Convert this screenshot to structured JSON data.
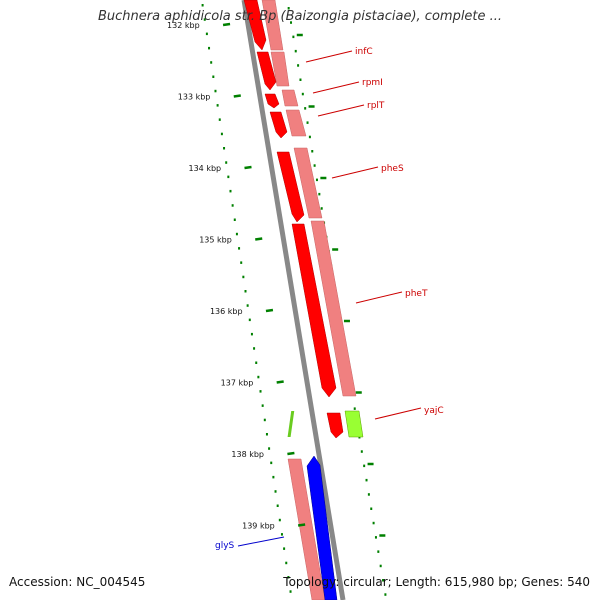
{
  "title": "Buchnera aphidicola str. Bp (Baizongia pistaciae), complete ...",
  "footer": {
    "accession": "Accession: NC_004545",
    "summary": "Topology: circular; Length: 615,980 bp; Genes: 540"
  },
  "colors": {
    "backbone": "#888888",
    "gene_forward": "#ff0000",
    "gene_reverse": "#0000ff",
    "gene_misc": "#99ff33",
    "cds_band": "#f08080",
    "cds_band_blue": "#f08080",
    "tick_dots": "#008000",
    "label_red": "#cc0000",
    "label_blue": "#0000cc"
  },
  "scale": {
    "unit": "kbp",
    "ticks": [
      {
        "kbp": 132,
        "label": "132 kbp"
      },
      {
        "kbp": 133,
        "label": "133 kbp"
      },
      {
        "kbp": 134,
        "label": "134 kbp"
      },
      {
        "kbp": 135,
        "label": "135 kbp"
      },
      {
        "kbp": 136,
        "label": "136 kbp"
      },
      {
        "kbp": 137,
        "label": "137 kbp"
      },
      {
        "kbp": 138,
        "label": "138 kbp"
      },
      {
        "kbp": 139,
        "label": "139 kbp"
      }
    ]
  },
  "genes": [
    {
      "name": "infC",
      "color": "label_red"
    },
    {
      "name": "rpmI",
      "color": "label_red"
    },
    {
      "name": "rplT",
      "color": "label_red"
    },
    {
      "name": "pheS",
      "color": "label_red"
    },
    {
      "name": "pheT",
      "color": "label_red"
    },
    {
      "name": "yajC",
      "color": "label_red"
    },
    {
      "name": "glyS",
      "color": "label_blue"
    }
  ]
}
